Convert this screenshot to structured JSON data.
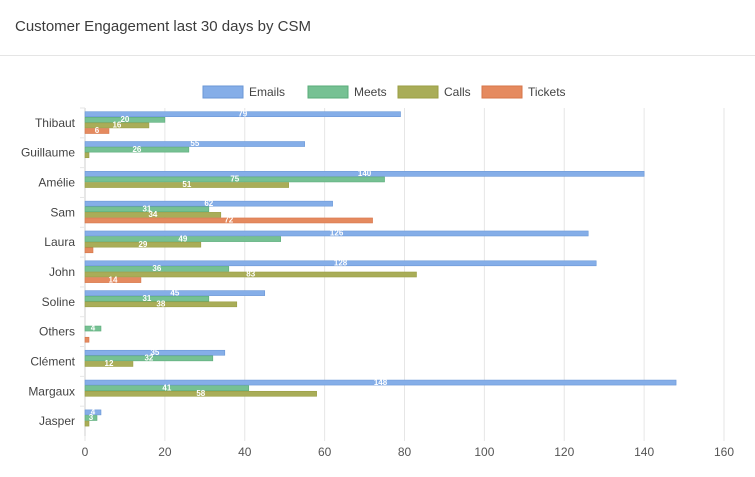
{
  "header": {
    "title": "Customer Engagement last 30 days by CSM"
  },
  "chart_data": {
    "type": "bar",
    "orientation": "horizontal",
    "title": "Customer Engagement last 30 days by CSM",
    "xlabel": "",
    "ylabel": "",
    "xlim": [
      0,
      160
    ],
    "xticks": [
      0,
      20,
      40,
      60,
      80,
      100,
      120,
      140,
      160
    ],
    "grid": true,
    "legend_position": "top",
    "categories": [
      "Thibaut",
      "Guillaume",
      "Amélie",
      "Sam",
      "Laura",
      "John",
      "Soline",
      "Others",
      "Clément",
      "Margaux",
      "Jasper"
    ],
    "series": [
      {
        "name": "Emails",
        "color": "#85aee8",
        "border": "#6a97d6",
        "values": [
          79,
          55,
          140,
          62,
          126,
          128,
          45,
          0,
          35,
          148,
          4
        ]
      },
      {
        "name": "Meets",
        "color": "#76c193",
        "border": "#5aac79",
        "values": [
          20,
          26,
          75,
          31,
          49,
          36,
          31,
          4,
          32,
          41,
          3
        ]
      },
      {
        "name": "Calls",
        "color": "#a9ad58",
        "border": "#9a9e44",
        "values": [
          16,
          1,
          51,
          34,
          29,
          83,
          38,
          0,
          12,
          58,
          1
        ]
      },
      {
        "name": "Tickets",
        "color": "#e58a5f",
        "border": "#d6764a",
        "values": [
          6,
          0,
          0,
          72,
          2,
          14,
          0,
          1,
          0,
          0,
          0
        ]
      }
    ]
  }
}
